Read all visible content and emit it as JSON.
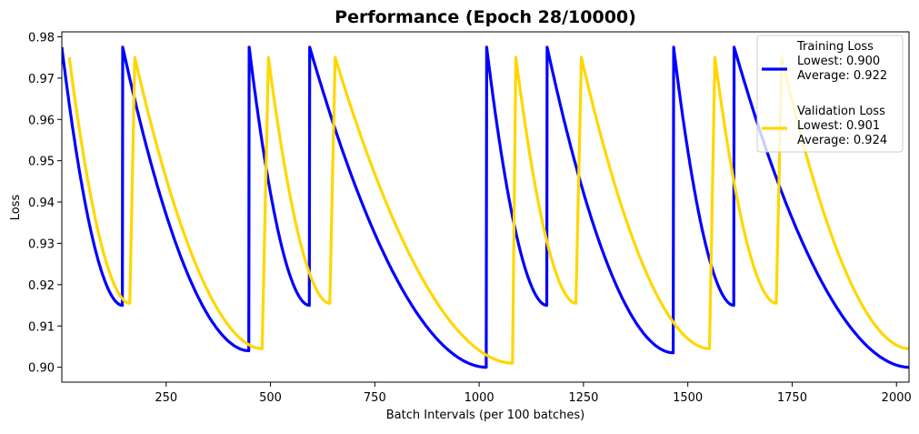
{
  "chart_data": {
    "type": "line",
    "title": "Performance (Epoch 28/10000)",
    "xlabel": "Batch Intervals (per 100 batches)",
    "ylabel": "Loss",
    "xlim": [
      0,
      2030
    ],
    "ylim": [
      0.8964,
      0.9812
    ],
    "x_ticks": [
      250,
      500,
      750,
      1000,
      1250,
      1500,
      1750,
      2000
    ],
    "y_ticks": [
      0.9,
      0.91,
      0.92,
      0.93,
      0.94,
      0.95,
      0.96,
      0.97,
      0.98
    ],
    "x_tick_labels": [
      "250",
      "500",
      "750",
      "1000",
      "1250",
      "1500",
      "1750",
      "2000"
    ],
    "y_tick_labels": [
      "0.90",
      "0.91",
      "0.92",
      "0.93",
      "0.94",
      "0.95",
      "0.96",
      "0.97",
      "0.98"
    ],
    "grid": false,
    "legend_position": "upper right",
    "series": [
      {
        "name": "Training Loss",
        "color": "#0000ff",
        "legend_lines": [
          "Training Loss",
          "Lowest: 0.900",
          "Average: 0.922"
        ],
        "segments": [
          {
            "start": 0,
            "end": 145,
            "start_value": 0.9775,
            "end_value": 0.915
          },
          {
            "start": 146,
            "end": 448,
            "start_value": 0.9775,
            "end_value": 0.904
          },
          {
            "start": 449,
            "end": 593,
            "start_value": 0.9775,
            "end_value": 0.915
          },
          {
            "start": 594,
            "end": 1017,
            "start_value": 0.9775,
            "end_value": 0.9
          },
          {
            "start": 1018,
            "end": 1162,
            "start_value": 0.9775,
            "end_value": 0.915
          },
          {
            "start": 1163,
            "end": 1465,
            "start_value": 0.9775,
            "end_value": 0.9035
          },
          {
            "start": 1466,
            "end": 1610,
            "start_value": 0.9775,
            "end_value": 0.915
          },
          {
            "start": 1611,
            "end": 2030,
            "start_value": 0.9775,
            "end_value": 0.9
          }
        ]
      },
      {
        "name": "Validation Loss",
        "color": "#ffd700",
        "legend_lines": [
          "Validation Loss",
          "Lowest: 0.901",
          "Average: 0.924"
        ],
        "segments": [
          {
            "start": 18,
            "end": 163,
            "start_value": 0.975,
            "end_value": 0.9155
          },
          {
            "start": 175,
            "end": 480,
            "start_value": 0.975,
            "end_value": 0.9045
          },
          {
            "start": 495,
            "end": 642,
            "start_value": 0.975,
            "end_value": 0.9155
          },
          {
            "start": 655,
            "end": 1080,
            "start_value": 0.975,
            "end_value": 0.901
          },
          {
            "start": 1088,
            "end": 1232,
            "start_value": 0.975,
            "end_value": 0.9155
          },
          {
            "start": 1245,
            "end": 1552,
            "start_value": 0.975,
            "end_value": 0.9045
          },
          {
            "start": 1565,
            "end": 1712,
            "start_value": 0.975,
            "end_value": 0.9155
          },
          {
            "start": 1725,
            "end": 2030,
            "start_value": 0.975,
            "end_value": 0.9045
          }
        ]
      }
    ]
  }
}
